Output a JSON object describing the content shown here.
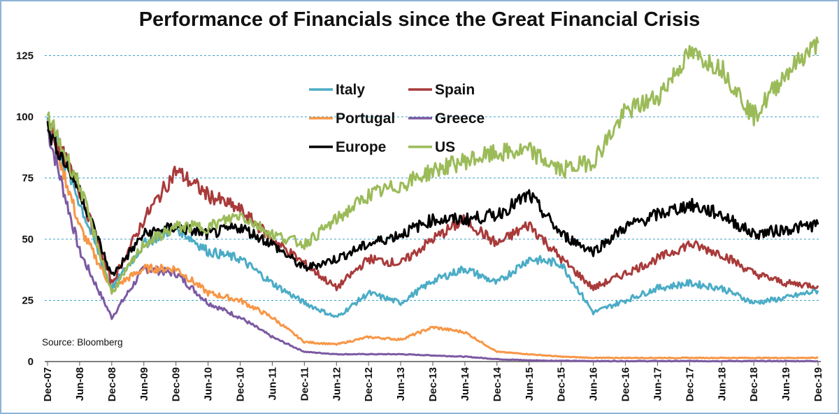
{
  "chart_data": {
    "type": "line",
    "title": "Performance of Financials since the Great Financial Crisis",
    "source_note": "Source: Bloomberg",
    "xlabel": "",
    "ylabel": "",
    "ylim": [
      0,
      130
    ],
    "yticks": [
      0,
      25,
      50,
      75,
      100,
      125
    ],
    "ygrid": true,
    "legend_position": "top-center",
    "categories": [
      "Dec-07",
      "Jun-08",
      "Dec-08",
      "Jun-09",
      "Dec-09",
      "Jun-10",
      "Dec-10",
      "Jun-11",
      "Dec-11",
      "Jun-12",
      "Dec-12",
      "Jun-13",
      "Dec-13",
      "Jun-14",
      "Dec-14",
      "Jun-15",
      "Dec-15",
      "Jun-16",
      "Dec-16",
      "Jun-17",
      "Dec-17",
      "Jun-18",
      "Dec-18",
      "Jun-19",
      "Dec-19"
    ],
    "series": [
      {
        "name": "Italy",
        "color": "#4bacc6",
        "values": [
          100,
          65,
          30,
          48,
          55,
          45,
          42,
          32,
          24,
          18,
          28,
          24,
          33,
          38,
          32,
          42,
          40,
          20,
          25,
          30,
          32,
          30,
          24,
          26,
          29
        ]
      },
      {
        "name": "Spain",
        "color": "#a93a3a",
        "values": [
          98,
          70,
          32,
          58,
          78,
          68,
          62,
          50,
          40,
          30,
          42,
          40,
          50,
          58,
          48,
          56,
          42,
          30,
          36,
          42,
          48,
          44,
          36,
          32,
          31
        ]
      },
      {
        "name": "Portugal",
        "color": "#f79646",
        "values": [
          100,
          55,
          30,
          38,
          38,
          28,
          25,
          18,
          8,
          7,
          10,
          9,
          14,
          12,
          4,
          3,
          2,
          1.5,
          1.5,
          1.5,
          1.5,
          1.5,
          1.5,
          1.5,
          1.5
        ]
      },
      {
        "name": "Greece",
        "color": "#7c5aa2",
        "values": [
          95,
          45,
          18,
          38,
          36,
          24,
          18,
          10,
          4,
          3,
          3,
          3,
          2.5,
          2,
          1,
          0.5,
          0.3,
          0.2,
          0.2,
          0.2,
          0.2,
          0.2,
          0.2,
          0.2,
          0.2
        ]
      },
      {
        "name": "Europe",
        "color": "#000000",
        "values": [
          95,
          70,
          35,
          52,
          55,
          52,
          55,
          48,
          38,
          42,
          48,
          52,
          58,
          58,
          60,
          68,
          52,
          45,
          55,
          60,
          64,
          60,
          52,
          54,
          56
        ]
      },
      {
        "name": "US",
        "color": "#9bbb59",
        "values": [
          100,
          72,
          28,
          48,
          55,
          55,
          60,
          52,
          48,
          58,
          68,
          72,
          78,
          82,
          85,
          86,
          78,
          82,
          102,
          108,
          126,
          120,
          100,
          118,
          130
        ]
      }
    ]
  }
}
